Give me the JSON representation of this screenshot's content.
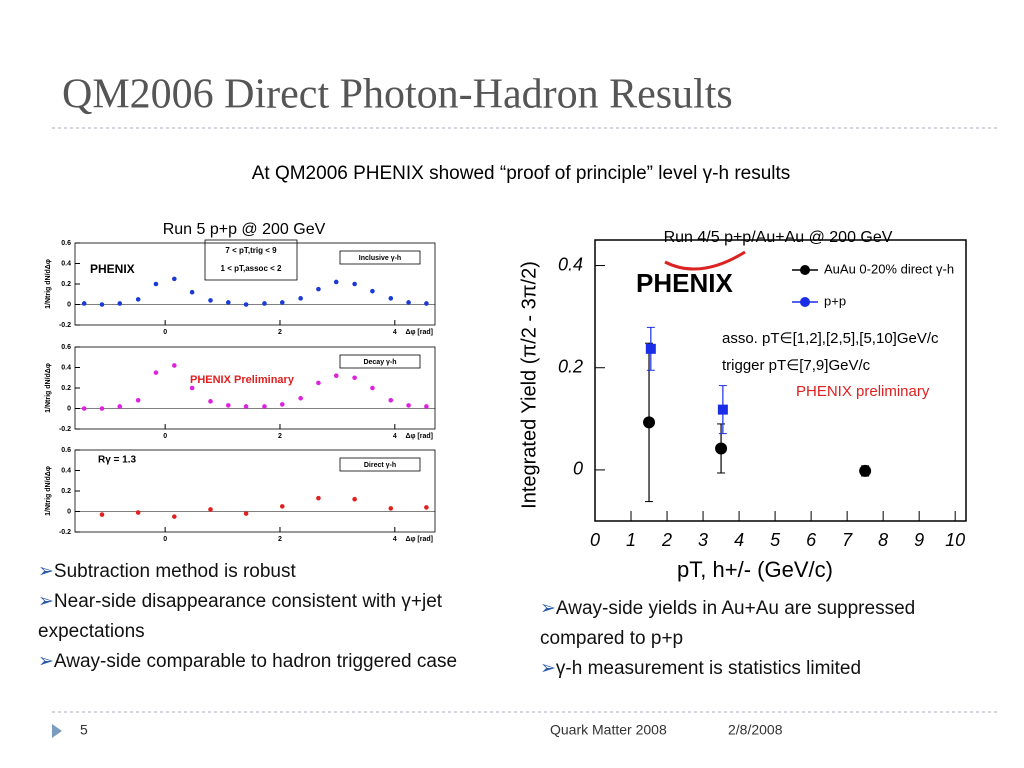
{
  "title": "QM2006 Direct Photon-Hadron Results",
  "subtitle": "At QM2006 PHENIX showed “proof of principle” level γ-h results",
  "left_panel": {
    "label": "Run 5 p+p @ 200 GeV",
    "cut_labels": [
      "7 < pT,trig < 9",
      "1 < pT,assoc < 2"
    ]
  },
  "chart_data": [
    {
      "type": "scatter",
      "panel_label": "Inclusive γ-h",
      "ylabel": "1/Ntrig dN/dΔφ",
      "xlabel": "Δφ [rad]",
      "annotations": [
        "PHENIX"
      ],
      "x": [
        -1.41,
        -1.1,
        -0.79,
        -0.47,
        -0.16,
        0.16,
        0.47,
        0.79,
        1.1,
        1.41,
        1.73,
        2.04,
        2.36,
        2.67,
        2.98,
        3.3,
        3.61,
        3.93,
        4.24,
        4.55
      ],
      "series": [
        {
          "color": "#1a3ad8",
          "values": [
            0.01,
            0.0,
            0.01,
            0.05,
            0.2,
            0.25,
            0.12,
            0.04,
            0.02,
            0.0,
            0.01,
            0.02,
            0.06,
            0.15,
            0.22,
            0.2,
            0.13,
            0.06,
            0.02,
            0.01
          ]
        }
      ],
      "xlim": [
        -1.57,
        4.7
      ],
      "xticks": [
        0,
        2,
        4
      ],
      "ylim": [
        -0.2,
        0.6
      ],
      "yticks": [
        -0.2,
        0,
        0.2,
        0.4,
        0.6
      ]
    },
    {
      "type": "scatter",
      "panel_label": "Decay γ-h",
      "ylabel": "1/Ntrig dN/dΔφ",
      "xlabel": "Δφ [rad]",
      "annotations": [
        "PHENIX Preliminary"
      ],
      "x": [
        -1.41,
        -1.1,
        -0.79,
        -0.47,
        -0.16,
        0.16,
        0.47,
        0.79,
        1.1,
        1.41,
        1.73,
        2.04,
        2.36,
        2.67,
        2.98,
        3.3,
        3.61,
        3.93,
        4.24,
        4.55
      ],
      "series": [
        {
          "color": "#e020e0",
          "values": [
            0.0,
            0.0,
            0.02,
            0.08,
            0.35,
            0.42,
            0.2,
            0.07,
            0.03,
            0.02,
            0.02,
            0.04,
            0.1,
            0.25,
            0.32,
            0.3,
            0.2,
            0.08,
            0.03,
            0.02
          ]
        }
      ],
      "xlim": [
        -1.57,
        4.7
      ],
      "xticks": [
        0,
        2,
        4
      ],
      "ylim": [
        -0.2,
        0.6
      ],
      "yticks": [
        -0.2,
        0,
        0.2,
        0.4,
        0.6
      ]
    },
    {
      "type": "scatter",
      "panel_label": "Direct γ-h",
      "ylabel": "1/Ntrig dN/dΔφ",
      "xlabel": "Δφ [rad]",
      "annotations": [
        "Rγ = 1.3"
      ],
      "x": [
        -1.1,
        -0.47,
        0.16,
        0.79,
        1.41,
        2.04,
        2.67,
        3.3,
        3.93,
        4.55
      ],
      "series": [
        {
          "color": "#e02020",
          "values": [
            -0.03,
            -0.01,
            -0.05,
            0.02,
            -0.02,
            0.05,
            0.13,
            0.12,
            0.03,
            0.04
          ]
        }
      ],
      "xlim": [
        -1.57,
        4.7
      ],
      "xticks": [
        0,
        2,
        4
      ],
      "ylim": [
        -0.2,
        0.6
      ],
      "yticks": [
        -0.2,
        0,
        0.2,
        0.4,
        0.6
      ]
    },
    {
      "type": "errorbar",
      "title": "Run 4/5 p+p/Au+Au @ 200 GeV",
      "xlabel": "pT, h+/- (GeV/c)",
      "ylabel": "Integrated Yield (π/2 - 3π/2)",
      "logo": "PHENIX",
      "annotations": [
        "asso. pT∈[1,2],[2,5],[5,10]GeV/c",
        "trigger pT∈[7,9]GeV/c",
        "PHENIX preliminary"
      ],
      "series": [
        {
          "name": "AuAu 0-20% direct γ-h",
          "color": "#000000",
          "x": [
            1.5,
            3.5,
            7.5
          ],
          "values": [
            0.093,
            0.042,
            -0.002
          ],
          "errors": [
            0.155,
            0.048,
            0.01
          ]
        },
        {
          "name": "p+p",
          "color": "#1a2ee8",
          "x": [
            1.55,
            3.55
          ],
          "values": [
            0.237,
            0.118
          ],
          "errors": [
            0.042,
            0.047
          ]
        }
      ],
      "xlim": [
        0,
        10.3
      ],
      "xticks": [
        0,
        1,
        2,
        3,
        4,
        5,
        6,
        7,
        8,
        9,
        10
      ],
      "ylim": [
        -0.1,
        0.45
      ],
      "yticks": [
        0,
        0.2,
        0.4
      ]
    }
  ],
  "bullets_left": [
    "Subtraction method is robust",
    "Near-side disappearance consistent with γ+jet expectations",
    "Away-side comparable to hadron triggered case"
  ],
  "bullets_right": [
    "Away-side yields in Au+Au are suppressed compared to p+p",
    "γ-h measurement is statistics limited"
  ],
  "footer": {
    "page": "5",
    "event": "Quark Matter 2008",
    "date": "2/8/2008"
  }
}
